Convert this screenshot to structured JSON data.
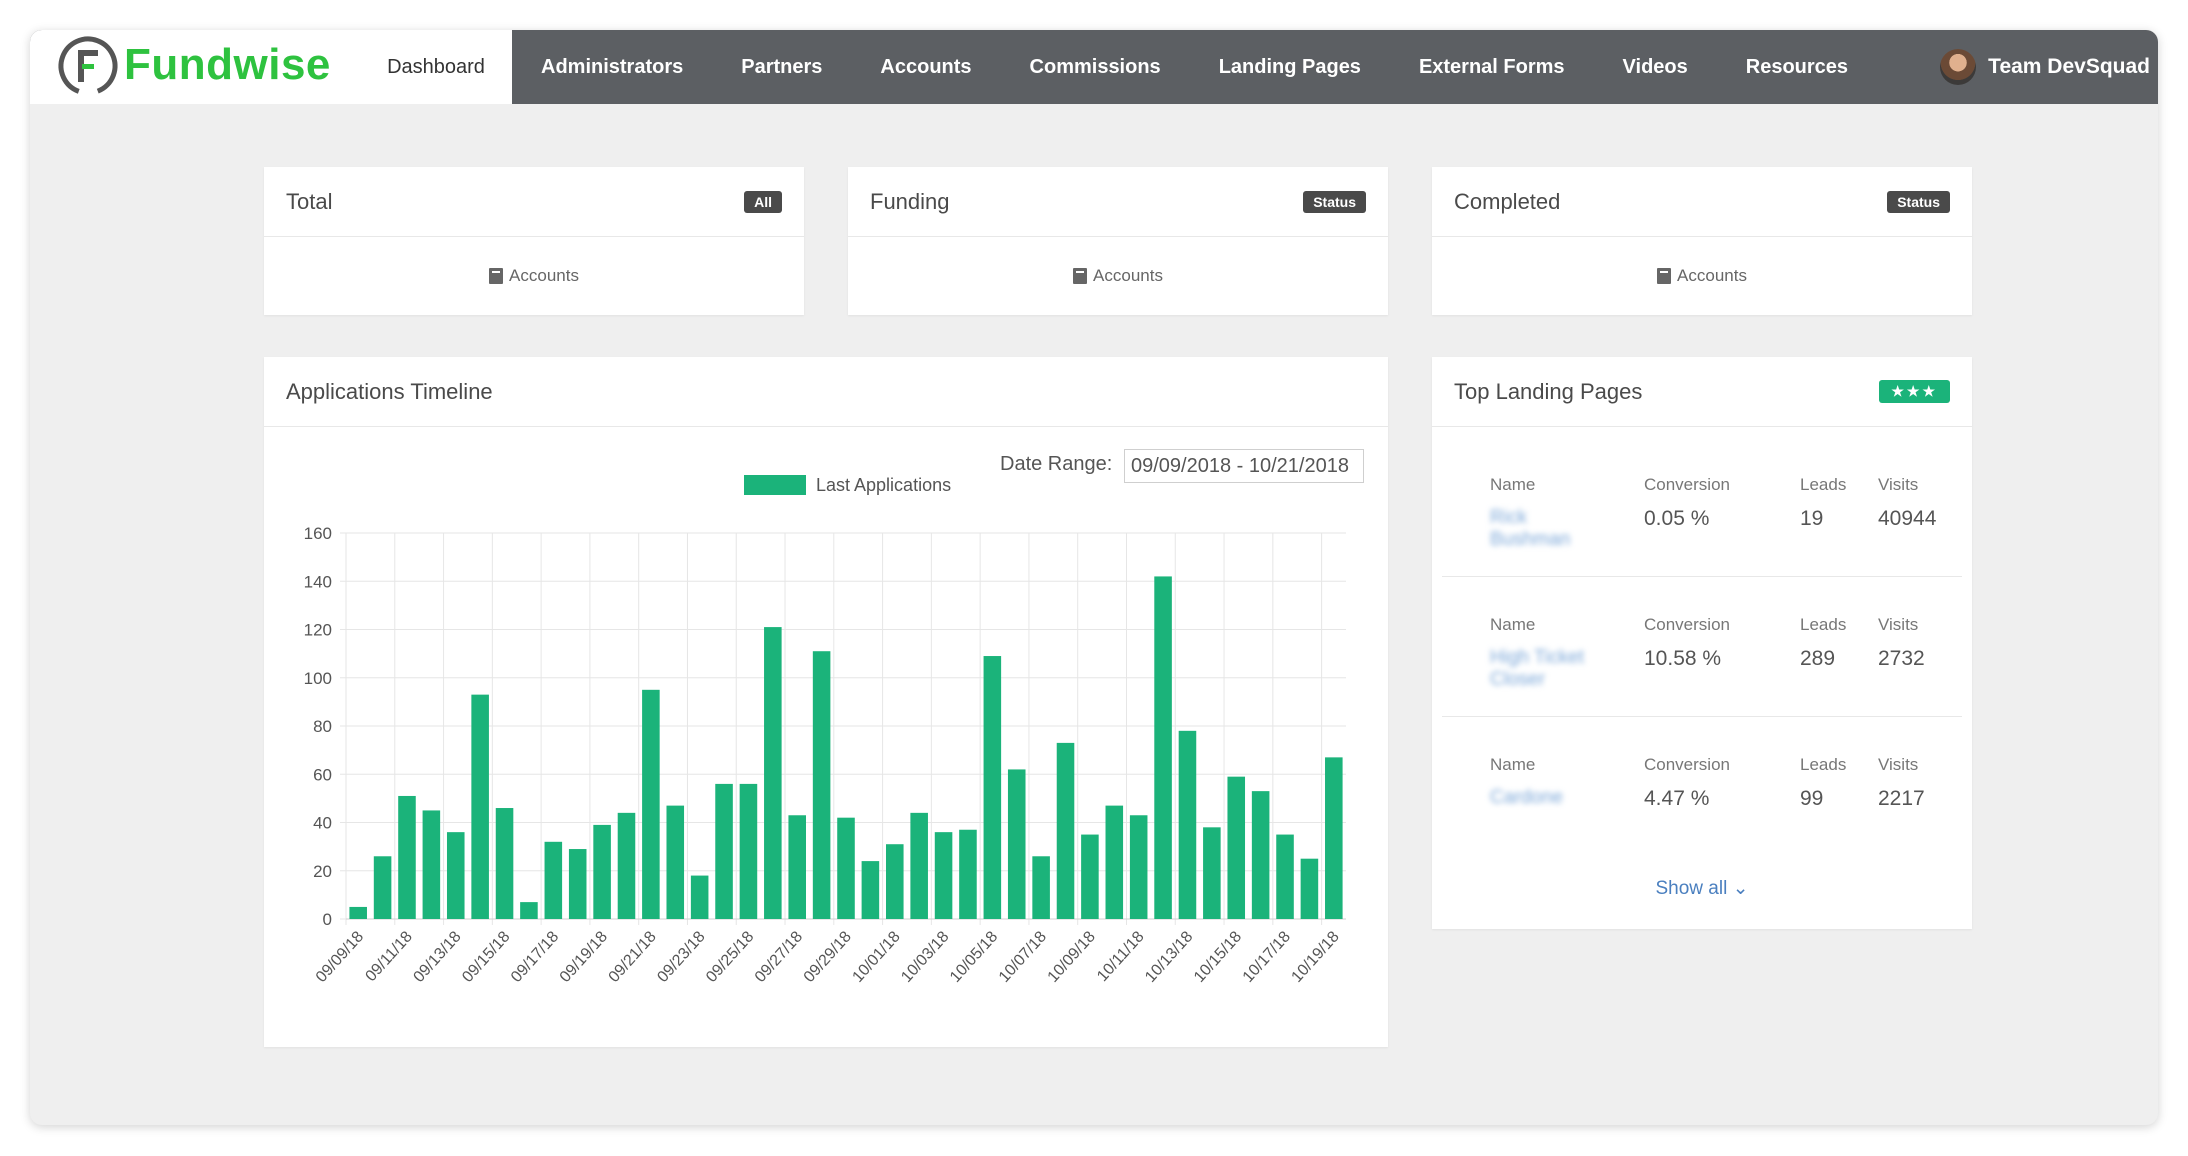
{
  "brand": {
    "name": "Fundwise",
    "color": "#2ec23f"
  },
  "nav": {
    "active": "Dashboard",
    "items": [
      "Administrators",
      "Partners",
      "Accounts",
      "Commissions",
      "Landing Pages",
      "External Forms",
      "Videos",
      "Resources"
    ]
  },
  "user": {
    "name": "Team DevSquad"
  },
  "stats": [
    {
      "title": "Total",
      "badge": "All",
      "body": "Accounts"
    },
    {
      "title": "Funding",
      "badge": "Status",
      "body": "Accounts"
    },
    {
      "title": "Completed",
      "badge": "Status",
      "body": "Accounts"
    }
  ],
  "timeline": {
    "title": "Applications Timeline",
    "date_range_label": "Date Range:",
    "date_range_value": "09/09/2018 - 10/21/2018"
  },
  "chart_data": {
    "type": "bar",
    "series": [
      {
        "name": "Last Applications",
        "color": "#1bb37a",
        "values": [
          5,
          26,
          51,
          45,
          36,
          93,
          46,
          7,
          32,
          29,
          39,
          44,
          95,
          47,
          18,
          56,
          56,
          121,
          43,
          111,
          42,
          24,
          31,
          44,
          36,
          37,
          109,
          62,
          26,
          73,
          35,
          47,
          43,
          142,
          78,
          38,
          59,
          53,
          35,
          25,
          67
        ]
      }
    ],
    "x_tick_labels": [
      "09/09/18",
      "09/11/18",
      "09/13/18",
      "09/15/18",
      "09/17/18",
      "09/19/18",
      "09/21/18",
      "09/23/18",
      "09/25/18",
      "09/27/18",
      "09/29/18",
      "10/01/18",
      "10/03/18",
      "10/05/18",
      "10/07/18",
      "10/09/18",
      "10/11/18",
      "10/13/18",
      "10/15/18",
      "10/17/18",
      "10/19/18"
    ],
    "y_ticks": [
      0,
      20,
      40,
      60,
      80,
      100,
      120,
      140,
      160
    ],
    "ylim": [
      0,
      160
    ],
    "grid": true,
    "legend_position": "top-center"
  },
  "top_landing": {
    "title": "Top Landing Pages",
    "badge": "★★★",
    "headers": {
      "name": "Name",
      "conversion": "Conversion",
      "leads": "Leads",
      "visits": "Visits"
    },
    "rows": [
      {
        "name": "Rick Bushman",
        "conversion": "0.05 %",
        "leads": "19",
        "visits": "40944"
      },
      {
        "name": "High Ticket Closer",
        "conversion": "10.58 %",
        "leads": "289",
        "visits": "2732"
      },
      {
        "name": "Cardone",
        "conversion": "4.47 %",
        "leads": "99",
        "visits": "2217"
      }
    ],
    "show_all": "Show all ⌄"
  }
}
